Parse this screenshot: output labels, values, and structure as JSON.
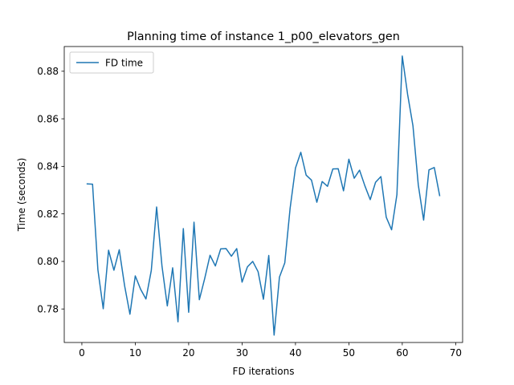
{
  "chart_data": {
    "type": "line",
    "title": "Planning time of instance 1_p00_elevators_gen",
    "xlabel": "FD iterations",
    "ylabel": "Time (seconds)",
    "xlim": [
      -3.3,
      71.3
    ],
    "ylim": [
      0.7659,
      0.8904
    ],
    "xticks": [
      0,
      10,
      20,
      30,
      40,
      50,
      60,
      70
    ],
    "xtick_labels": [
      "0",
      "10",
      "20",
      "30",
      "40",
      "50",
      "60",
      "70"
    ],
    "yticks": [
      0.78,
      0.8,
      0.82,
      0.84,
      0.86,
      0.88
    ],
    "ytick_labels": [
      "0.78",
      "0.80",
      "0.82",
      "0.84",
      "0.86",
      "0.88"
    ],
    "grid": false,
    "legend": {
      "position": "top-left"
    },
    "colors": {
      "series": "#1f77b4",
      "axes": "#000000",
      "legend_border": "#cccccc"
    },
    "series": [
      {
        "name": "FD time",
        "x": [
          1,
          2,
          3,
          4,
          5,
          6,
          7,
          8,
          9,
          10,
          11,
          12,
          13,
          14,
          15,
          16,
          17,
          18,
          19,
          20,
          21,
          22,
          23,
          24,
          25,
          26,
          27,
          28,
          29,
          30,
          31,
          32,
          33,
          34,
          35,
          36,
          37,
          38,
          39,
          40,
          41,
          42,
          43,
          44,
          45,
          46,
          47,
          48,
          49,
          50,
          51,
          52,
          53,
          54,
          55,
          56,
          57,
          58,
          59,
          60,
          61,
          62,
          63,
          64,
          65,
          66,
          67
        ],
        "values": [
          0.8326,
          0.8325,
          0.7965,
          0.7801,
          0.8047,
          0.7963,
          0.8049,
          0.7898,
          0.7778,
          0.7939,
          0.7883,
          0.7842,
          0.7962,
          0.8229,
          0.7981,
          0.7813,
          0.7973,
          0.7746,
          0.8138,
          0.7786,
          0.8165,
          0.7839,
          0.7928,
          0.8026,
          0.7981,
          0.8053,
          0.8054,
          0.8022,
          0.8054,
          0.7913,
          0.7977,
          0.8,
          0.7957,
          0.7841,
          0.8025,
          0.769,
          0.7934,
          0.7994,
          0.8224,
          0.8393,
          0.8459,
          0.8363,
          0.8342,
          0.8249,
          0.8336,
          0.8316,
          0.8389,
          0.839,
          0.8297,
          0.843,
          0.835,
          0.8384,
          0.8318,
          0.826,
          0.8333,
          0.8357,
          0.8186,
          0.8133,
          0.8281,
          0.8864,
          0.8703,
          0.8571,
          0.8322,
          0.8174,
          0.8385,
          0.8395,
          0.8277
        ]
      }
    ]
  }
}
